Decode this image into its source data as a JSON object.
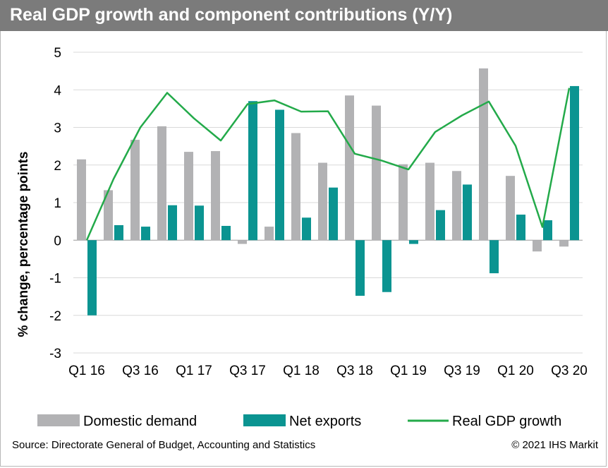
{
  "header": {
    "title": "Real GDP growth and component contributions (Y/Y)"
  },
  "footer": {
    "source": "Source: Directorate General of Budget, Accounting and Statistics",
    "credit": "© 2021 IHS Markit"
  },
  "colors": {
    "domestic": "#b2b2b4",
    "net_exports": "#0b9491",
    "gdp_line": "#23aa4a",
    "title_bg": "#7b7b7b"
  },
  "chart_data": {
    "type": "bar",
    "title": "Real GDP growth and component contributions (Y/Y)",
    "xlabel": "",
    "ylabel": "% change, percentage points",
    "ylim": [
      -3,
      5
    ],
    "yticks": [
      5,
      4,
      3,
      2,
      1,
      0,
      -1,
      -2,
      -3
    ],
    "grid": true,
    "legend_position": "bottom",
    "categories": [
      "Q1 16",
      "Q2 16",
      "Q3 16",
      "Q4 16",
      "Q1 17",
      "Q2 17",
      "Q3 17",
      "Q4 17",
      "Q1 18",
      "Q2 18",
      "Q3 18",
      "Q4 18",
      "Q1 19",
      "Q2 19",
      "Q3 19",
      "Q4 19",
      "Q1 20",
      "Q2 20",
      "Q3 20"
    ],
    "tick_labels": [
      "Q1 16",
      "Q3 16",
      "Q1 17",
      "Q3 17",
      "Q1 18",
      "Q3 18",
      "Q1 19",
      "Q3 19",
      "Q1 20",
      "Q3 20"
    ],
    "series": [
      {
        "name": "Domestic demand",
        "kind": "bar",
        "values": [
          2.15,
          1.33,
          2.67,
          3.03,
          2.35,
          2.37,
          -0.1,
          0.36,
          2.85,
          2.06,
          3.85,
          3.58,
          2.02,
          2.06,
          1.84,
          4.57,
          1.71,
          -0.3,
          -0.17
        ]
      },
      {
        "name": "Net exports",
        "kind": "bar",
        "values": [
          -2.0,
          0.4,
          0.36,
          0.93,
          0.92,
          0.38,
          3.7,
          3.47,
          0.6,
          1.4,
          -1.48,
          -1.38,
          -0.1,
          0.8,
          1.48,
          -0.88,
          0.68,
          0.53,
          4.1
        ]
      },
      {
        "name": "Real GDP growth",
        "kind": "line",
        "values": [
          0.0,
          1.63,
          3.0,
          3.92,
          3.24,
          2.65,
          3.62,
          3.72,
          3.42,
          3.43,
          2.3,
          2.12,
          1.88,
          2.88,
          3.32,
          3.69,
          2.51,
          0.35,
          4.05
        ]
      }
    ]
  }
}
